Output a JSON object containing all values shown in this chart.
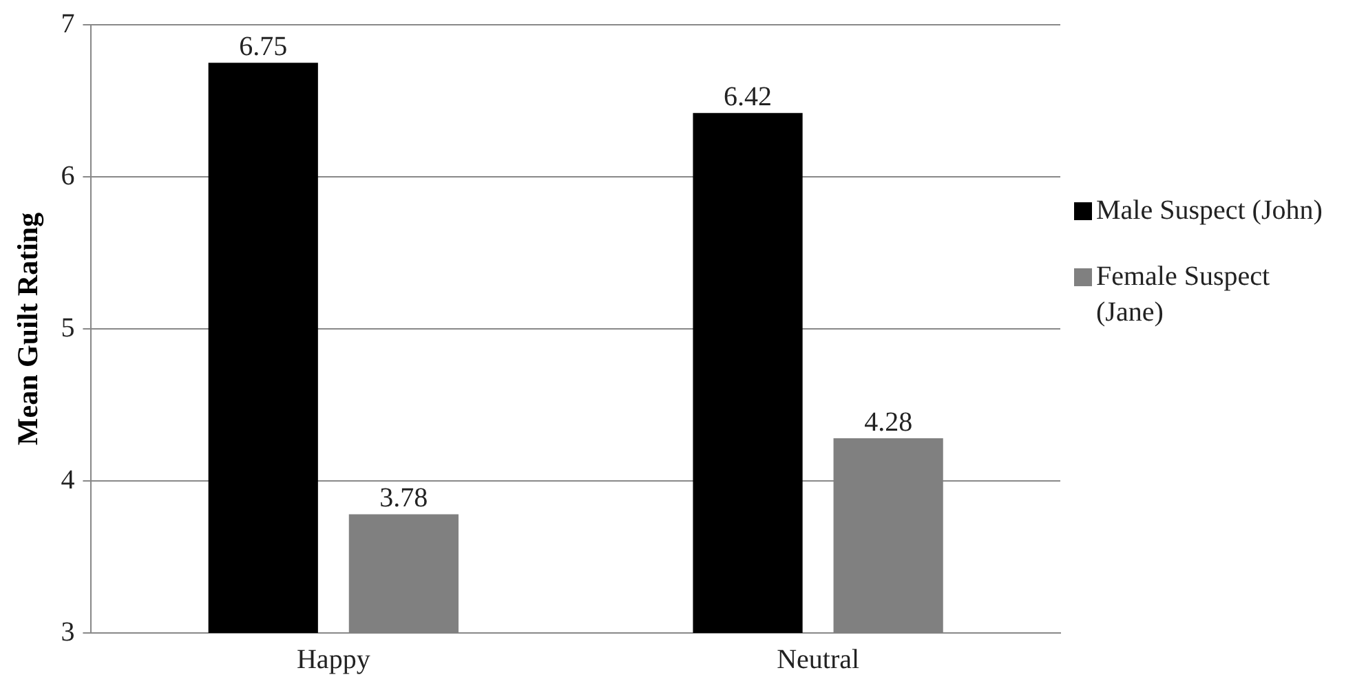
{
  "chart_data": {
    "type": "bar",
    "ylabel": "Mean Guilt Rating",
    "categories": [
      "Happy",
      "Neutral"
    ],
    "series": [
      {
        "name": "Male Suspect (John)",
        "color": "#000000",
        "values": [
          6.75,
          6.42
        ]
      },
      {
        "name": "Female Suspect (Jane)",
        "color": "#808080",
        "values": [
          3.78,
          4.28
        ]
      }
    ],
    "ylim": [
      3,
      7
    ],
    "yticks": [
      3,
      4,
      5,
      6,
      7
    ],
    "grid": "y",
    "legend": "right",
    "data_labels": true
  }
}
